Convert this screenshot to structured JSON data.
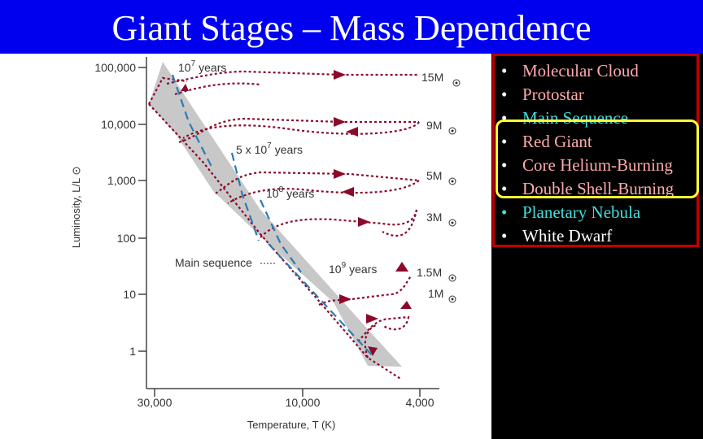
{
  "title": "Giant Stages – Mass Dependence",
  "legend": {
    "items": [
      {
        "label": "Molecular Cloud",
        "color": "#ffaaaa"
      },
      {
        "label": "Protostar",
        "color": "#ffaaaa"
      },
      {
        "label": "Main Sequence",
        "color": "#44dddd"
      },
      {
        "label": "Red Giant",
        "color": "#ffaaaa"
      },
      {
        "label": "Core Helium-Burning",
        "color": "#ffaaaa"
      },
      {
        "label": "Double Shell-Burning",
        "color": "#ffaaaa"
      },
      {
        "label": "Planetary Nebula",
        "color": "#44dddd"
      },
      {
        "label": "White Dwarf",
        "color": "#ffffff"
      }
    ],
    "highlighted": [
      "Red Giant",
      "Core Helium-Burning",
      "Double Shell-Burning"
    ]
  },
  "diagram": {
    "y_axis_label": "Luminosity, L/L",
    "x_axis_label": "Temperature, T (K)",
    "y_ticks": [
      "100,000",
      "10,000",
      "1,000",
      "100",
      "10",
      "1"
    ],
    "x_ticks": [
      "30,000",
      "10,000",
      "4,000"
    ],
    "tracks": [
      "15M",
      "9M",
      "5M",
      "3M",
      "1.5M",
      "1M"
    ],
    "isochrones": {
      "t1_base": "10",
      "t1_exp": "7",
      "t1_unit": "years",
      "t2": "5 x 10",
      "t2_exp": "7",
      "t2_unit": "years",
      "t3_base": "10",
      "t3_exp": "8",
      "t3_unit": "years",
      "t4_base": "10",
      "t4_exp": "9",
      "t4_unit": "years"
    },
    "main_sequence_label": "Main sequence",
    "colors": {
      "track": "#8b0a2a",
      "isochrone": "#2b7bb3",
      "band": "#c8c8c8"
    }
  }
}
